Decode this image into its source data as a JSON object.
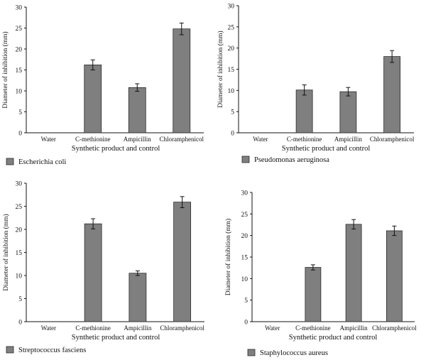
{
  "chart_data": [
    {
      "type": "bar",
      "categories": [
        "Water",
        "C-methionine",
        "Ampicillin",
        "Chloramphenicol"
      ],
      "values": [
        0,
        16.2,
        10.8,
        24.8
      ],
      "errors": [
        0,
        1.2,
        0.9,
        1.4
      ],
      "xlabel": "Synthetic product and control",
      "ylabel": "Diameter of inhibition (mm)",
      "ylim": [
        0,
        30
      ],
      "yticks": [
        "0",
        "5",
        "10",
        "15",
        "20",
        "25",
        "30"
      ],
      "legend": "Escherichia coli"
    },
    {
      "type": "bar",
      "categories": [
        "Water",
        "C-methionine",
        "Ampicillin",
        "Chloramphenicol"
      ],
      "values": [
        0,
        10.1,
        9.7,
        18.0
      ],
      "errors": [
        0,
        1.2,
        1.0,
        1.4
      ],
      "xlabel": "Synthetic product and control",
      "ylabel": "Diameter of inhibition (mm)",
      "ylim": [
        0,
        30
      ],
      "yticks": [
        "0",
        "5",
        "10",
        "15",
        "20",
        "25",
        "30"
      ],
      "legend": "Pseudomonas aeruginosa"
    },
    {
      "type": "bar",
      "categories": [
        "Water",
        "C-methionine",
        "Ampicillin",
        "Chloramphenicol"
      ],
      "values": [
        0,
        21.2,
        10.5,
        25.9
      ],
      "errors": [
        0,
        1.1,
        0.5,
        1.2
      ],
      "xlabel": "Synthetic product and control",
      "ylabel": "Diameter of inhibition (mm)",
      "ylim": [
        0,
        30
      ],
      "yticks": [
        "0",
        "5",
        "10",
        "15",
        "20",
        "25",
        "30"
      ],
      "legend": "Streptococcus fasciens"
    },
    {
      "type": "bar",
      "categories": [
        "Water",
        "C-methionine",
        "Ampicillin",
        "Chloramphenicol"
      ],
      "values": [
        0,
        12.6,
        22.6,
        21.1
      ],
      "errors": [
        0,
        0.6,
        1.1,
        1.1
      ],
      "xlabel": "Synthetic product and control",
      "ylabel": "Diameter of inhibition (mm)",
      "ylim": [
        0,
        30
      ],
      "yticks": [
        "0",
        "5",
        "10",
        "15",
        "20",
        "25",
        "30"
      ],
      "legend": "Staphylococcus aureus"
    }
  ],
  "colors": {
    "bar": "#7f7f7f",
    "bar_stroke": "#2b2b2b",
    "axis": "#111111"
  }
}
